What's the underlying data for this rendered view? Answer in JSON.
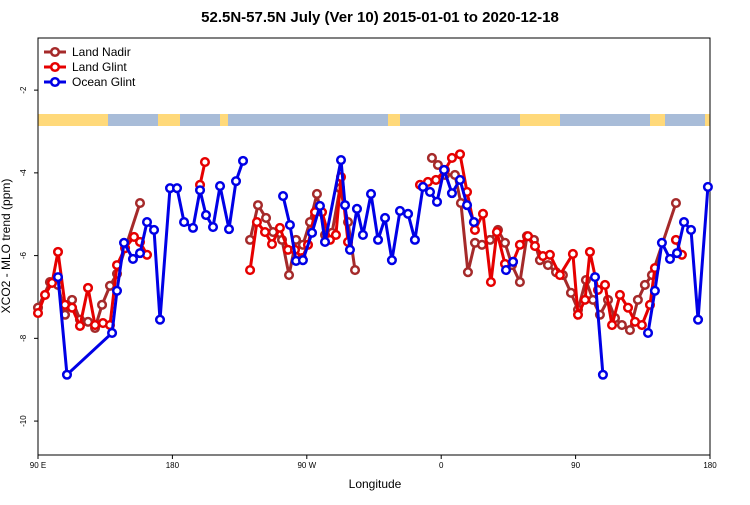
{
  "chart_data": {
    "type": "line",
    "title": "52.5N-57.5N July (Ver 10)   2015-01-01 to 2020-12-18",
    "x_label": "Longitude",
    "y_label": "XCO2 - MLO trend (ppm)",
    "xlim": [
      90,
      540
    ],
    "xticks": [
      {
        "value": 90,
        "label": "90 E"
      },
      180,
      {
        "value": 270,
        "label": "90 W"
      },
      {
        "value": 360,
        "label": "0"
      },
      {
        "value": 450,
        "label": "90"
      },
      {
        "value": 540,
        "label": "180"
      }
    ],
    "ylim": [
      -10.82,
      -0.74
    ],
    "yticks": [
      -10,
      -8,
      -6,
      -4,
      -2
    ],
    "legend": "upper-left",
    "series": [
      {
        "name": "Land Nadir",
        "color": "#a52a2a",
        "x": [
          90.0,
          98.0,
          103.4,
          108.1,
          112.8,
          118.1,
          123.5,
          128.2,
          132.9,
          138.2,
          142.9,
          158.3,
          null,
          232.0,
          237.3,
          242.7,
          247.4,
          253.4,
          258.1,
          262.8,
          267.4,
          272.1,
          276.8,
          282.2,
          286.9,
          292.2,
          297.6,
          302.3,
          null,
          353.8,
          357.8,
          362.5,
          369.2,
          373.2,
          377.9,
          382.6,
          387.3,
          392.7,
          398.0,
          402.7,
          407.4,
          412.7,
          417.4,
          422.1,
          426.1,
          431.5,
          436.9,
          441.5,
          446.9,
          451.6,
          456.9,
          461.6,
          466.3,
          471.7,
          476.4,
          481.0,
          486.4,
          491.7,
          496.4,
          501.1,
          517.2
        ],
        "values": [
          -7.26,
          -6.64,
          -6.71,
          -7.43,
          -7.07,
          -7.55,
          -7.6,
          -7.75,
          -7.19,
          -6.73,
          -6.44,
          -4.73,
          null,
          -5.62,
          -4.78,
          -5.09,
          -5.43,
          -5.62,
          -6.47,
          -5.62,
          -5.74,
          -5.19,
          -4.51,
          -5.5,
          -5.45,
          -4.37,
          -5.19,
          -6.35,
          null,
          -3.64,
          -3.81,
          -4.05,
          -4.05,
          -4.73,
          -6.4,
          -5.69,
          -5.74,
          -5.62,
          -5.38,
          -5.69,
          -6.23,
          -6.64,
          -5.53,
          -5.62,
          -6.11,
          -6.23,
          -6.4,
          -6.47,
          -6.9,
          -7.31,
          -6.59,
          -7.07,
          -7.43,
          -7.07,
          -7.51,
          -7.68,
          -7.8,
          -7.07,
          -6.71,
          -6.47,
          -4.73
        ]
      },
      {
        "name": "Land Glint",
        "color": "#e60000",
        "x": [
          90.0,
          94.7,
          99.4,
          103.4,
          108.1,
          112.8,
          118.1,
          123.5,
          128.2,
          133.5,
          138.2,
          142.9,
          148.3,
          154.3,
          158.3,
          163.0,
          null,
          198.5,
          201.8,
          null,
          232.0,
          236.6,
          242.0,
          246.7,
          252.0,
          257.4,
          262.1,
          266.8,
          270.8,
          275.5,
          280.2,
          285.5,
          289.5,
          292.9,
          297.6,
          null,
          345.8,
          351.1,
          356.5,
          362.5,
          367.2,
          372.6,
          377.3,
          382.6,
          388.0,
          393.3,
          397.3,
          402.7,
          408.1,
          412.7,
          418.1,
          422.8,
          428.1,
          432.8,
          439.5,
          448.2,
          451.6,
          456.3,
          459.6,
          465.0,
          469.7,
          474.4,
          479.7,
          485.1,
          489.8,
          494.4,
          499.8,
          503.1,
          null,
          517.2,
          521.2
        ],
        "values": [
          -7.39,
          -6.95,
          -6.66,
          -5.91,
          -7.19,
          -7.26,
          -7.7,
          -6.78,
          -7.68,
          -7.63,
          -7.68,
          -6.23,
          -5.82,
          -5.55,
          -5.67,
          -5.98,
          null,
          -4.29,
          -3.74,
          null,
          -6.35,
          -5.19,
          -5.43,
          -5.72,
          -5.33,
          -5.86,
          -5.86,
          -6.06,
          -5.74,
          -4.95,
          -4.95,
          -5.62,
          -5.5,
          -4.1,
          -5.67,
          null,
          -4.29,
          -4.22,
          -4.17,
          -3.93,
          -3.64,
          -3.55,
          -4.46,
          -5.38,
          -4.99,
          -6.64,
          -5.43,
          -6.2,
          -6.15,
          -5.74,
          -5.53,
          -5.77,
          -6.01,
          -5.98,
          -6.47,
          -5.96,
          -7.43,
          -7.07,
          -5.91,
          -6.83,
          -6.71,
          -7.68,
          -6.95,
          -7.26,
          -7.6,
          -7.68,
          -7.19,
          -6.3,
          null,
          -5.62,
          -5.98
        ]
      },
      {
        "name": "Ocean Glint",
        "color": "#0000e6",
        "x": [
          103.4,
          109.4,
          139.6,
          142.9,
          147.6,
          153.6,
          158.3,
          163.0,
          167.7,
          171.7,
          178.4,
          183.1,
          187.8,
          193.8,
          198.5,
          202.5,
          207.2,
          211.9,
          217.9,
          222.6,
          227.3,
          null,
          254.1,
          258.7,
          262.8,
          267.4,
          273.5,
          278.8,
          282.2,
          292.9,
          295.6,
          298.9,
          303.6,
          307.6,
          313.0,
          317.7,
          322.4,
          327.0,
          332.4,
          337.8,
          342.4,
          347.8,
          352.5,
          357.2,
          361.9,
          367.2,
          372.6,
          377.3,
          381.9,
          null,
          403.4,
          408.1,
          null,
          463.0,
          468.3,
          null,
          498.5,
          503.1,
          507.8,
          513.2,
          517.9,
          522.6,
          527.3,
          532.0,
          538.6
        ],
        "values": [
          -6.52,
          -8.88,
          -7.87,
          -6.85,
          -5.69,
          -6.08,
          -5.94,
          -5.19,
          -5.38,
          -7.55,
          -4.37,
          -4.37,
          -5.19,
          -5.33,
          -4.42,
          -5.02,
          -5.31,
          -4.32,
          -5.36,
          -4.2,
          -3.71,
          null,
          -4.56,
          -5.26,
          -6.13,
          -6.11,
          -5.45,
          -4.8,
          -5.67,
          -3.69,
          -4.78,
          -5.86,
          -4.87,
          -5.5,
          -4.51,
          -5.62,
          -5.09,
          -6.11,
          -4.92,
          -4.99,
          -5.62,
          -4.34,
          -4.46,
          -4.7,
          -3.93,
          -4.49,
          -4.17,
          -4.78,
          -5.19,
          null,
          -6.35,
          -6.15,
          null,
          -6.52,
          -8.88,
          null,
          -7.87,
          -6.85,
          -5.69,
          -6.08,
          -5.94,
          -5.19,
          -5.38,
          -7.55,
          -4.34
        ]
      }
    ]
  }
}
